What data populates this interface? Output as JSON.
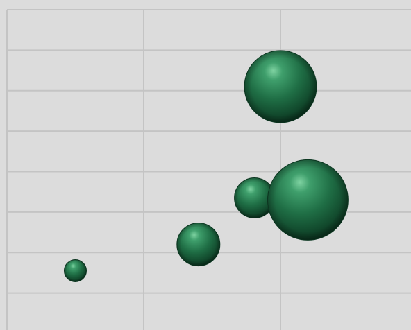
{
  "chart_data": {
    "type": "bubble",
    "title": "",
    "xlabel": "",
    "ylabel": "",
    "xlim": [
      0,
      3
    ],
    "ylim": [
      0,
      8
    ],
    "grid": true,
    "legend": "none",
    "series": [
      {
        "color": "#1f6e45",
        "points": [
          {
            "x": 0.5,
            "y": 1.55,
            "size": 16
          },
          {
            "x": 1.4,
            "y": 2.2,
            "size": 31
          },
          {
            "x": 1.81,
            "y": 3.35,
            "size": 29
          },
          {
            "x": 2.0,
            "y": 6.1,
            "size": 52
          },
          {
            "x": 2.2,
            "y": 3.3,
            "size": 58
          }
        ]
      }
    ]
  }
}
